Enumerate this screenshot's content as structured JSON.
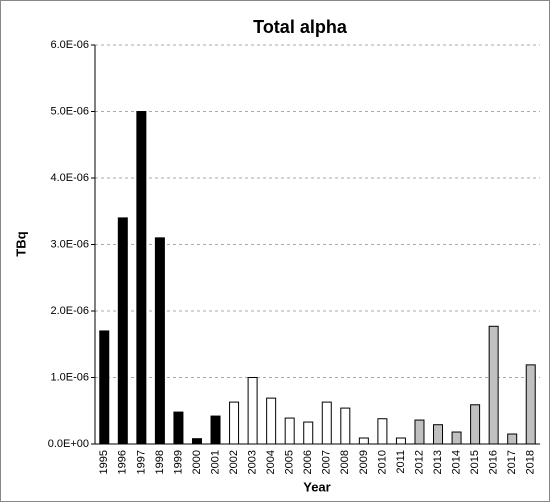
{
  "chart_data": {
    "type": "bar",
    "title": "Total alpha",
    "x_label": "Year",
    "y_label": "TBq",
    "categories": [
      "1995",
      "1996",
      "1997",
      "1998",
      "1999",
      "2000",
      "2001",
      "2002",
      "2003",
      "2004",
      "2005",
      "2006",
      "2007",
      "2008",
      "2009",
      "2010",
      "2011",
      "2012",
      "2013",
      "2014",
      "2015",
      "2016",
      "2017",
      "2018"
    ],
    "values": [
      1.7e-06,
      3.4e-06,
      5e-06,
      3.1e-06,
      4.8e-07,
      8e-08,
      4.2e-07,
      6.3e-07,
      1e-06,
      6.9e-07,
      3.9e-07,
      3.3e-07,
      6.3e-07,
      5.4e-07,
      9e-08,
      3.8e-07,
      9e-08,
      3.6e-07,
      2.9e-07,
      1.8e-07,
      5.9e-07,
      1.77e-06,
      1.5e-07,
      1.19e-06
    ],
    "colors": [
      "#000000",
      "#000000",
      "#000000",
      "#000000",
      "#000000",
      "#000000",
      "#000000",
      "#ffffff",
      "#ffffff",
      "#ffffff",
      "#ffffff",
      "#ffffff",
      "#ffffff",
      "#ffffff",
      "#ffffff",
      "#ffffff",
      "#ffffff",
      "#c0c0c0",
      "#c0c0c0",
      "#c0c0c0",
      "#c0c0c0",
      "#c0c0c0",
      "#c0c0c0",
      "#c0c0c0"
    ],
    "ylim": [
      0,
      6e-06
    ],
    "yticks": [
      {
        "value": 0,
        "label": "0.0E+00"
      },
      {
        "value": 1e-06,
        "label": "1.0E-06"
      },
      {
        "value": 2e-06,
        "label": "2.0E-06"
      },
      {
        "value": 3e-06,
        "label": "3.0E-06"
      },
      {
        "value": 4e-06,
        "label": "4.0E-06"
      },
      {
        "value": 5e-06,
        "label": "5.0E-06"
      },
      {
        "value": 6e-06,
        "label": "6.0E-06"
      }
    ],
    "grid": true
  }
}
